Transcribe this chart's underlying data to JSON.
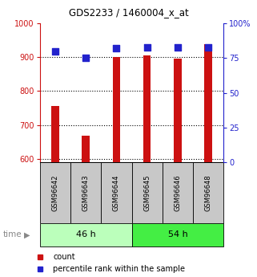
{
  "title": "GDS2233 / 1460004_x_at",
  "samples": [
    "GSM96642",
    "GSM96643",
    "GSM96644",
    "GSM96645",
    "GSM96646",
    "GSM96648"
  ],
  "counts": [
    757,
    668,
    900,
    905,
    897,
    938
  ],
  "percentile_ranks": [
    80,
    75,
    82,
    83,
    83,
    83
  ],
  "groups": [
    {
      "label": "46 h",
      "color_light": "#ccffcc",
      "color_dark": "#44dd44",
      "n": 3
    },
    {
      "label": "54 h",
      "color_light": "#44ee44",
      "color_dark": "#22cc22",
      "n": 3
    }
  ],
  "ylim_left": [
    590,
    1000
  ],
  "ylim_right": [
    0,
    100
  ],
  "yticks_left": [
    600,
    700,
    800,
    900,
    1000
  ],
  "yticks_right": [
    0,
    25,
    50,
    75,
    100
  ],
  "bar_color": "#cc1111",
  "dot_color": "#2222cc",
  "bar_width": 0.25,
  "dot_size": 35,
  "left_tick_color": "#cc1111",
  "right_tick_color": "#2222cc",
  "group0_color": "#bbffbb",
  "group1_color": "#44ee44"
}
